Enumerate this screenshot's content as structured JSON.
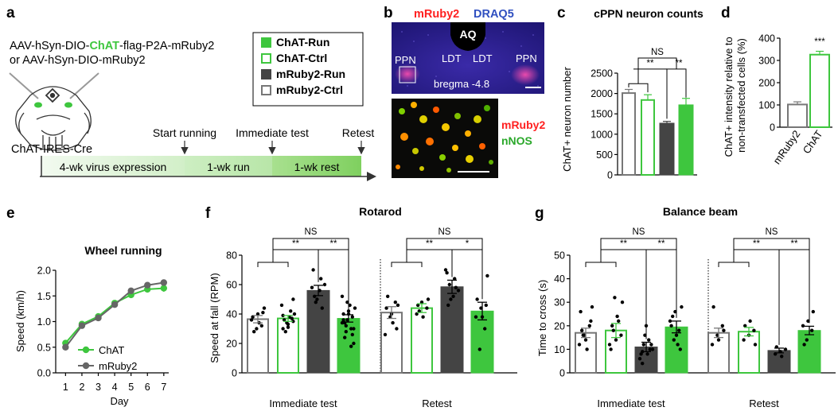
{
  "panel_labels": [
    "a",
    "b",
    "c",
    "d",
    "e",
    "f",
    "g"
  ],
  "panel_a": {
    "construct_line1_pre": "AAV-hSyn-DIO-",
    "construct_line1_hl": "ChAT",
    "construct_line1_post": "-flag-P2A-mRuby2",
    "construct_line2": "or AAV-hSyn-DIO-mRuby2",
    "mouse_label": "ChAT-IRES-Cre",
    "legend": [
      {
        "label": "ChAT-Run",
        "style": "filled",
        "color": "#3ec63e"
      },
      {
        "label": "ChAT-Ctrl",
        "style": "open",
        "color": "#3ec63e"
      },
      {
        "label": "mRuby2-Run",
        "style": "filled",
        "color": "#444444"
      },
      {
        "label": "mRuby2-Ctrl",
        "style": "open",
        "color": "#777777"
      }
    ],
    "timeline_events": [
      "Start running",
      "Immediate test",
      "Retest"
    ],
    "timeline_segments": [
      "4-wk virus expression",
      "1-wk run",
      "1-wk rest"
    ]
  },
  "panel_b": {
    "stain1": "mRuby2",
    "stain2": "DRAQ5",
    "labels": [
      "AQ",
      "PPN",
      "LDT",
      "LDT",
      "PPN"
    ],
    "bregma": "bregma -4.8",
    "inset_labels": [
      "mRuby2",
      "nNOS"
    ]
  },
  "colors": {
    "chat": "#3ec63e",
    "mruby_run": "#444444",
    "mruby_ctrl_edge": "#777777",
    "mruby2_line": "#666666",
    "red_stain": "#ff2020",
    "blue_stain": "#3050c0"
  },
  "chart_data": [
    {
      "panel": "c",
      "type": "bar",
      "title": "cPPN neuron counts",
      "ylabel": "ChAT+ neuron number",
      "ylim": [
        0,
        2500
      ],
      "yticks": [
        0,
        500,
        1000,
        1500,
        2000,
        2500
      ],
      "groups": [
        "mRuby2-Ctrl",
        "ChAT-Ctrl",
        "mRuby2-Run",
        "ChAT-Run"
      ],
      "values": [
        2010,
        1840,
        1270,
        1720
      ],
      "errors": [
        90,
        130,
        45,
        160
      ],
      "significance": [
        "NS",
        "**",
        "**"
      ]
    },
    {
      "panel": "d",
      "type": "bar",
      "ylabel": "ChAT+ intensity relative to non-transfected cells (%)",
      "ylim": [
        0,
        400
      ],
      "yticks": [
        0,
        100,
        200,
        300,
        400
      ],
      "categories": [
        "mRuby2",
        "ChAT"
      ],
      "values": [
        102,
        326
      ],
      "errors": [
        12,
        15
      ],
      "significance": [
        "***"
      ]
    },
    {
      "panel": "e",
      "type": "line",
      "title": "Wheel running",
      "xlabel": "Day",
      "ylabel": "Speed (km/h)",
      "x": [
        1,
        2,
        3,
        4,
        5,
        6,
        7
      ],
      "xlim": [
        0.4,
        7.3
      ],
      "ylim": [
        0,
        2.0
      ],
      "yticks": [
        "0.0",
        "0.5",
        "1.0",
        "1.5",
        "2.0"
      ],
      "series": [
        {
          "name": "ChAT",
          "values": [
            0.58,
            0.95,
            1.1,
            1.36,
            1.52,
            1.63,
            1.65
          ],
          "errors": [
            0.05,
            0.04,
            0.04,
            0.05,
            0.05,
            0.06,
            0.07
          ]
        },
        {
          "name": "mRuby2",
          "values": [
            0.5,
            0.92,
            1.07,
            1.33,
            1.6,
            1.71,
            1.76
          ],
          "errors": [
            0.04,
            0.04,
            0.04,
            0.04,
            0.04,
            0.05,
            0.05
          ]
        }
      ]
    },
    {
      "panel": "f",
      "type": "bar",
      "title": "Rotarod",
      "ylabel": "Speed at fall (RPM)",
      "ylim": [
        0,
        80
      ],
      "yticks": [
        0,
        20,
        40,
        60,
        80
      ],
      "groups": [
        "mRuby2-Ctrl",
        "ChAT-Ctrl",
        "mRuby2-Run",
        "ChAT-Run"
      ],
      "categories": [
        "Immediate test",
        "Retest"
      ],
      "blocks": [
        {
          "values": [
            36.5,
            37,
            56,
            37
          ],
          "errors": [
            2.5,
            2,
            3.5,
            2.5
          ],
          "points": [
            [
              36,
              30,
              32,
              38,
              40,
              41,
              28,
              34,
              44
            ],
            [
              30,
              33,
              35,
              36,
              38,
              40,
              28,
              42,
              46,
              34,
              37,
              39,
              31,
              50
            ],
            [
              52,
              56,
              60,
              48,
              64,
              58,
              50,
              44,
              70
            ],
            [
              28,
              30,
              34,
              36,
              38,
              40,
              42,
              20,
              24,
              46,
              44,
              32,
              18,
              52,
              48,
              26,
              36,
              40,
              30,
              34
            ]
          ]
        },
        {
          "values": [
            41,
            44,
            58.5,
            42
          ],
          "errors": [
            4,
            3,
            4.5,
            6
          ],
          "points": [
            [
              26,
              38,
              48,
              44,
              40,
              30,
              52,
              34,
              46
            ],
            [
              40,
              48,
              44,
              46,
              38,
              50,
              42
            ],
            [
              46,
              52,
              56,
              60,
              64,
              70,
              50,
              58,
              68
            ],
            [
              16,
              30,
              38,
              44,
              46,
              50,
              38,
              66
            ]
          ]
        }
      ],
      "significance": [
        [
          "NS",
          "**",
          "**"
        ],
        [
          "NS",
          "**",
          "*"
        ]
      ]
    },
    {
      "panel": "g",
      "type": "bar",
      "title": "Balance beam",
      "ylabel": "Time to cross (s)",
      "ylim": [
        0,
        50
      ],
      "yticks": [
        0,
        10,
        20,
        30,
        40,
        50
      ],
      "groups": [
        "mRuby2-Ctrl",
        "ChAT-Ctrl",
        "mRuby2-Run",
        "ChAT-Run"
      ],
      "categories": [
        "Immediate test",
        "Retest"
      ],
      "blocks": [
        {
          "values": [
            17,
            18,
            11,
            19.5
          ],
          "errors": [
            2,
            3,
            2,
            2.5
          ],
          "points": [
            [
              12,
              16,
              20,
              26,
              14,
              22,
              18,
              10,
              28,
              16
            ],
            [
              10,
              14,
              16,
              20,
              24,
              30,
              18,
              22,
              12,
              32
            ],
            [
              4,
              8,
              10,
              12,
              14,
              6,
              16,
              10,
              8,
              20,
              12,
              9
            ],
            [
              14,
              18,
              22,
              26,
              10,
              20,
              16,
              28,
              24,
              12
            ]
          ]
        },
        {
          "values": [
            17,
            17.5,
            9.5,
            18
          ],
          "errors": [
            2,
            1.8,
            1,
            1.8
          ],
          "points": [
            [
              12,
              16,
              20,
              28,
              14,
              18
            ],
            [
              14,
              16,
              18,
              20,
              22,
              12
            ],
            [
              8,
              9,
              10,
              11,
              7
            ],
            [
              14,
              18,
              20,
              22,
              26,
              12
            ]
          ]
        }
      ],
      "significance": [
        [
          "NS",
          "**",
          "**"
        ],
        [
          "NS",
          "**",
          "**"
        ]
      ]
    }
  ]
}
